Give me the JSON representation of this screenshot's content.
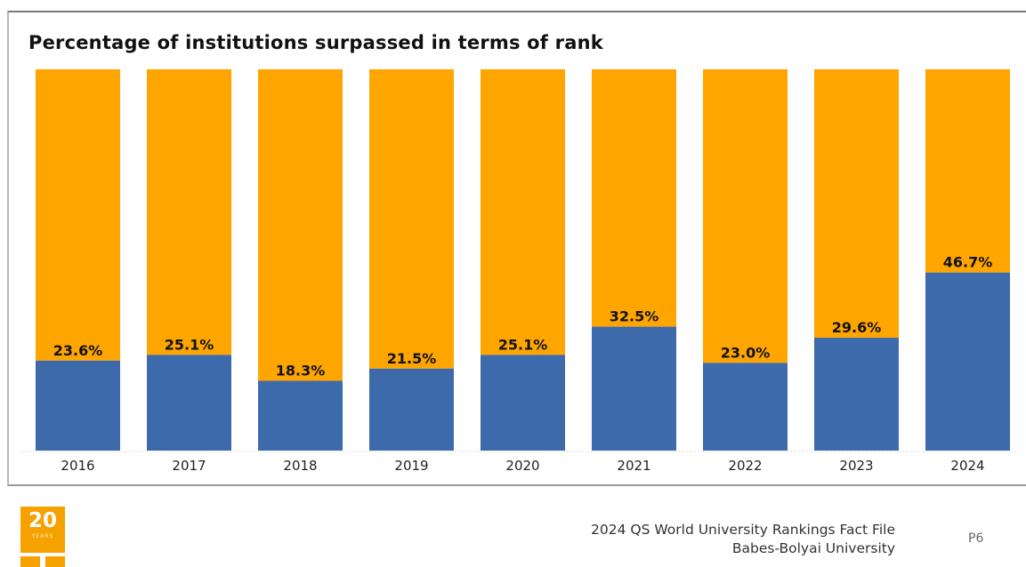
{
  "chart_data": {
    "type": "bar",
    "stacked": true,
    "title": "Percentage of institutions surpassed in terms of rank",
    "categories": [
      "2016",
      "2017",
      "2018",
      "2019",
      "2020",
      "2021",
      "2022",
      "2023",
      "2024"
    ],
    "values": [
      23.6,
      25.1,
      18.3,
      21.5,
      25.1,
      32.5,
      23.0,
      29.6,
      46.7
    ],
    "value_labels": [
      "23.6%",
      "25.1%",
      "18.3%",
      "21.5%",
      "25.1%",
      "32.5%",
      "23.0%",
      "29.6%",
      "46.7%"
    ],
    "ylim": [
      0,
      100
    ],
    "grid": false,
    "legend": "none",
    "colors": {
      "value": "#3d6aaa",
      "remainder": "#ffa500"
    }
  },
  "footer": {
    "logo_number": "20",
    "logo_word": "YEARS",
    "line1": "2024 QS World University Rankings Fact File",
    "line2": "Babes-Bolyai University",
    "page": "P6"
  }
}
